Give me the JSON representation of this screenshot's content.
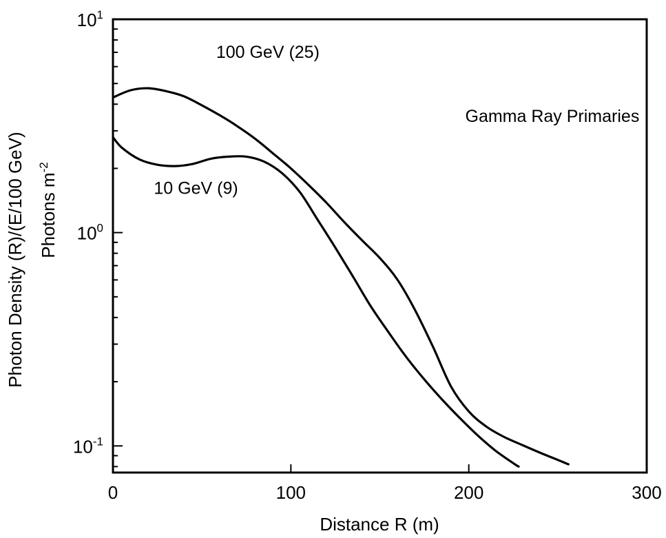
{
  "chart_data": {
    "type": "line",
    "xlabel": "Distance R (m)",
    "ylabel": "Photon Density (R)/(E/100 GeV)",
    "ylabel2": "Photons m",
    "ylabel2_sup": "-2",
    "x_scale": "linear",
    "y_scale": "log",
    "xlim": [
      0,
      300
    ],
    "ylim": [
      0.075,
      10
    ],
    "grid": false,
    "x_ticks": [
      {
        "value": 0,
        "label": "0"
      },
      {
        "value": 100,
        "label": "100"
      },
      {
        "value": 200,
        "label": "200"
      },
      {
        "value": 300,
        "label": "300"
      }
    ],
    "y_major_ticks": [
      {
        "value": 0.1,
        "base": "10",
        "exp": "-1"
      },
      {
        "value": 1,
        "base": "10",
        "exp": "0"
      },
      {
        "value": 10,
        "base": "10",
        "exp": "1"
      }
    ],
    "annotations": [
      {
        "text": "Gamma Ray Primaries",
        "x": 198,
        "y": 3.3
      },
      {
        "text": "100 GeV (25)",
        "x": 58,
        "y": 6.6
      },
      {
        "text": "10 GeV (9)",
        "x": 23,
        "y": 1.52
      }
    ],
    "series": [
      {
        "name": "100 GeV (25)",
        "points": [
          [
            0,
            4.3
          ],
          [
            10,
            4.65
          ],
          [
            20,
            4.75
          ],
          [
            30,
            4.6
          ],
          [
            40,
            4.35
          ],
          [
            50,
            3.95
          ],
          [
            60,
            3.55
          ],
          [
            70,
            3.15
          ],
          [
            80,
            2.75
          ],
          [
            90,
            2.35
          ],
          [
            100,
            2.0
          ],
          [
            110,
            1.67
          ],
          [
            120,
            1.38
          ],
          [
            130,
            1.12
          ],
          [
            140,
            0.92
          ],
          [
            150,
            0.76
          ],
          [
            160,
            0.6
          ],
          [
            170,
            0.43
          ],
          [
            180,
            0.29
          ],
          [
            190,
            0.19
          ],
          [
            200,
            0.145
          ],
          [
            210,
            0.123
          ],
          [
            220,
            0.11
          ],
          [
            230,
            0.101
          ],
          [
            240,
            0.093
          ],
          [
            250,
            0.086
          ],
          [
            256,
            0.082
          ]
        ]
      },
      {
        "name": "10 GeV (9)",
        "points": [
          [
            0,
            2.8
          ],
          [
            5,
            2.5
          ],
          [
            15,
            2.2
          ],
          [
            25,
            2.08
          ],
          [
            35,
            2.05
          ],
          [
            45,
            2.1
          ],
          [
            55,
            2.22
          ],
          [
            65,
            2.27
          ],
          [
            75,
            2.27
          ],
          [
            85,
            2.15
          ],
          [
            95,
            1.9
          ],
          [
            105,
            1.55
          ],
          [
            115,
            1.15
          ],
          [
            125,
            0.85
          ],
          [
            135,
            0.62
          ],
          [
            145,
            0.45
          ],
          [
            155,
            0.34
          ],
          [
            165,
            0.26
          ],
          [
            175,
            0.205
          ],
          [
            185,
            0.165
          ],
          [
            195,
            0.135
          ],
          [
            205,
            0.112
          ],
          [
            215,
            0.095
          ],
          [
            225,
            0.083
          ],
          [
            228,
            0.08
          ]
        ]
      }
    ]
  }
}
